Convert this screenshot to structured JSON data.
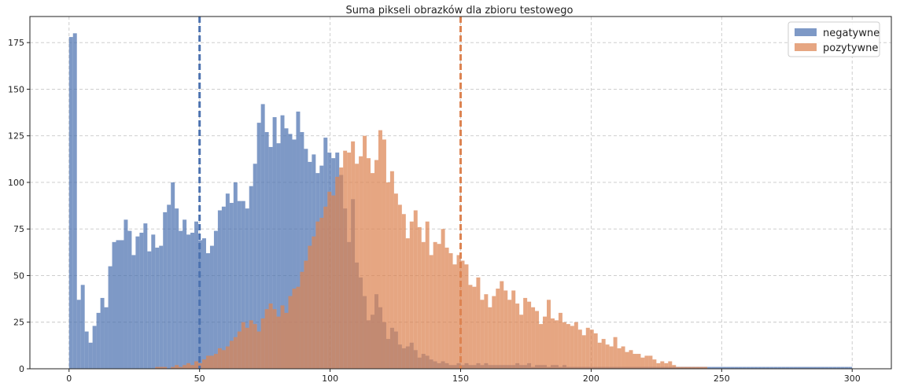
{
  "chart_data": {
    "type": "bar",
    "title": "Suma pikseli obrazków dla zbioru testowego",
    "xlabel": "",
    "ylabel": "",
    "xlim": [
      -15,
      315
    ],
    "ylim": [
      0,
      189
    ],
    "xticks": [
      0,
      50,
      100,
      150,
      200,
      250,
      300
    ],
    "yticks": [
      0,
      25,
      50,
      75,
      100,
      125,
      150,
      175
    ],
    "grid": true,
    "grid_style": "dashed",
    "legend_position": "top-right",
    "bin_width": 1.5,
    "series": [
      {
        "name": "negatywne",
        "color": "#4c72b0",
        "bin_start": 0,
        "values": [
          178,
          180,
          37,
          45,
          20,
          14,
          23,
          30,
          38,
          33,
          55,
          68,
          69,
          69,
          80,
          74,
          61,
          71,
          73,
          78,
          63,
          72,
          65,
          66,
          84,
          88,
          100,
          86,
          74,
          80,
          72,
          73,
          79,
          69,
          70,
          62,
          66,
          74,
          85,
          87,
          94,
          89,
          100,
          90,
          90,
          86,
          98,
          110,
          132,
          142,
          127,
          119,
          135,
          121,
          136,
          129,
          126,
          123,
          138,
          127,
          118,
          111,
          115,
          105,
          109,
          124,
          116,
          113,
          116,
          104,
          86,
          68,
          91,
          57,
          49,
          39,
          26,
          29,
          40,
          33,
          25,
          16,
          22,
          20,
          13,
          11,
          12,
          14,
          10,
          6,
          8,
          7,
          5,
          4,
          3,
          4,
          3,
          2,
          2,
          3,
          2,
          3,
          2,
          2,
          3,
          2,
          3,
          2,
          2,
          2,
          2,
          2,
          2,
          2,
          3,
          2,
          2,
          3,
          1,
          2,
          2,
          2,
          1,
          2,
          2,
          1,
          2,
          1,
          1,
          1,
          1,
          1,
          1,
          1,
          1,
          1,
          1,
          1,
          1,
          1,
          1,
          1,
          1,
          1,
          1,
          1,
          1,
          1,
          1,
          1,
          1,
          1,
          1,
          1,
          1,
          1,
          1,
          1,
          1,
          1,
          1,
          1,
          1,
          1,
          1,
          1,
          1,
          1,
          1,
          1,
          1,
          1,
          1,
          1,
          1,
          1,
          1,
          1,
          1,
          1,
          1,
          1,
          1,
          1,
          1,
          1,
          1,
          1,
          1,
          1,
          1,
          1,
          1,
          1,
          1,
          1,
          1,
          1,
          1,
          1
        ]
      },
      {
        "name": "pozytywne",
        "color": "#dd8452",
        "bin_start": 33,
        "values": [
          1,
          1,
          1,
          0,
          1,
          2,
          1,
          2,
          3,
          2,
          4,
          3,
          5,
          7,
          7,
          8,
          11,
          10,
          12,
          15,
          17,
          20,
          25,
          22,
          26,
          24,
          20,
          27,
          32,
          35,
          32,
          28,
          34,
          30,
          39,
          43,
          44,
          52,
          58,
          66,
          71,
          79,
          81,
          87,
          95,
          93,
          103,
          108,
          117,
          116,
          122,
          110,
          114,
          125,
          113,
          105,
          112,
          128,
          123,
          100,
          106,
          94,
          88,
          83,
          70,
          79,
          85,
          76,
          68,
          79,
          61,
          68,
          67,
          75,
          65,
          62,
          56,
          61,
          58,
          56,
          45,
          44,
          49,
          37,
          40,
          33,
          39,
          43,
          47,
          42,
          37,
          42,
          35,
          29,
          38,
          36,
          33,
          31,
          24,
          28,
          37,
          27,
          26,
          30,
          25,
          24,
          23,
          25,
          21,
          18,
          22,
          21,
          19,
          14,
          16,
          13,
          12,
          17,
          11,
          12,
          9,
          10,
          8,
          8,
          6,
          7,
          7,
          5,
          3,
          4,
          3,
          4,
          2,
          1,
          1,
          1,
          1,
          1,
          1,
          1,
          1
        ]
      }
    ],
    "mean_lines": [
      {
        "series": "negatywne",
        "x": 50,
        "color": "#4c72b0"
      },
      {
        "series": "pozytywne",
        "x": 150,
        "color": "#dd8452"
      }
    ]
  }
}
